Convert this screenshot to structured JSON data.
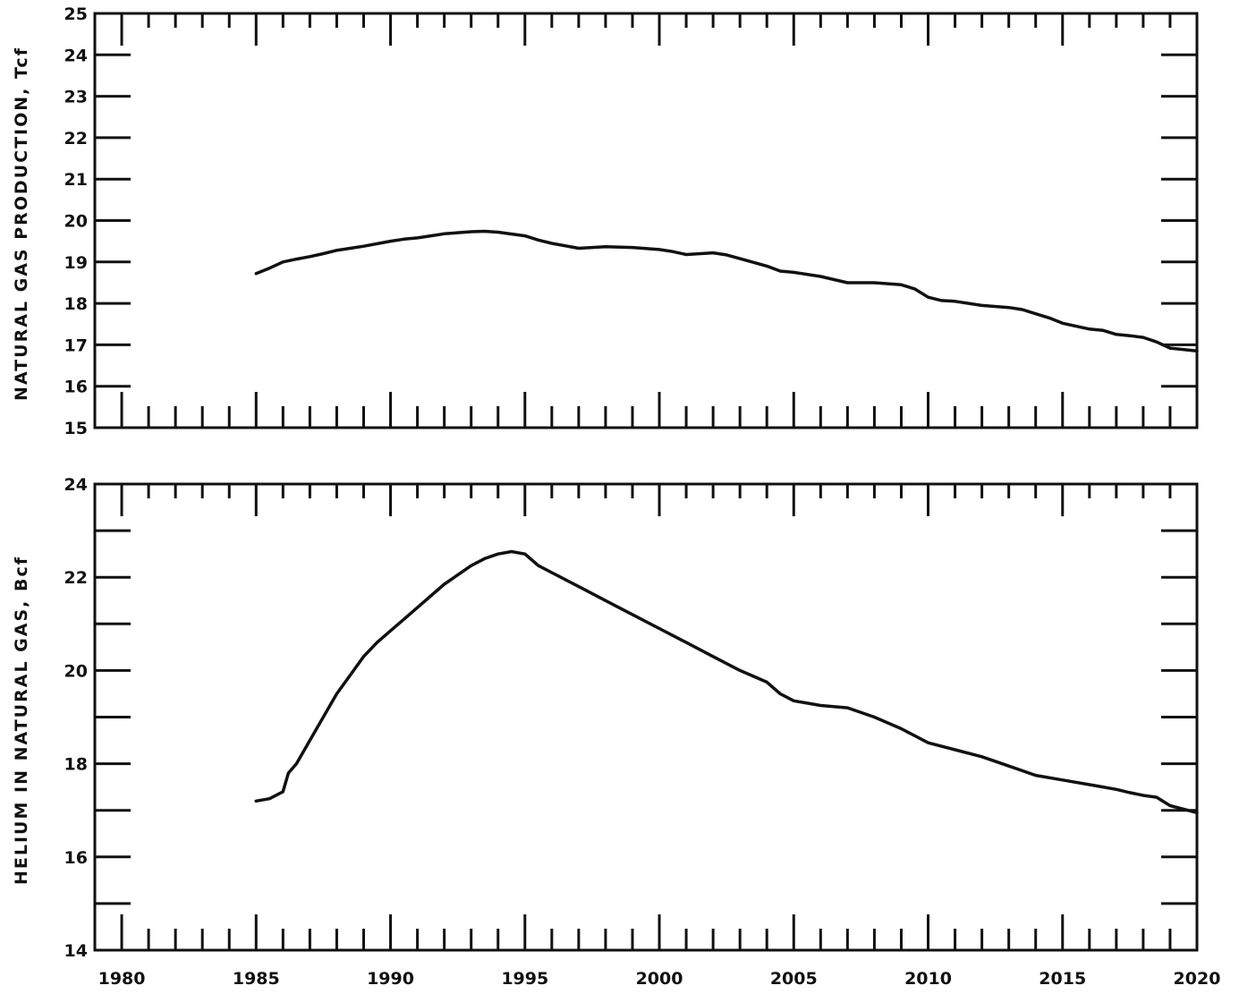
{
  "chart_data": [
    {
      "type": "line",
      "ylabel": "NATURAL GAS PRODUCTION, Tcf",
      "xlabel": "",
      "xlim": [
        1979,
        2020
      ],
      "ylim": [
        15,
        25
      ],
      "ytick_labels": [
        "15",
        "16",
        "17",
        "18",
        "19",
        "20",
        "21",
        "22",
        "23",
        "24",
        "25"
      ],
      "xtick_labels": [],
      "series": [
        {
          "x": [
            1985,
            1985.5,
            1986,
            1986.5,
            1987,
            1987.5,
            1988,
            1988.5,
            1989,
            1990,
            1990.5,
            1991,
            1991.5,
            1992,
            1993,
            1993.5,
            1994,
            1995,
            1995.5,
            1996,
            1997,
            1998,
            1999,
            2000,
            2000.5,
            2001,
            2002,
            2002.5,
            2003,
            2004,
            2004.5,
            2005,
            2006,
            2007,
            2008,
            2009,
            2009.5,
            2010,
            2010.5,
            2011,
            2012,
            2013,
            2013.5,
            2014,
            2014.5,
            2015,
            2016,
            2016.5,
            2017,
            2017.5,
            2018,
            2018.5,
            2019,
            2020
          ],
          "y": [
            18.72,
            18.85,
            19.0,
            19.07,
            19.13,
            19.2,
            19.28,
            19.33,
            19.38,
            19.5,
            19.55,
            19.58,
            19.63,
            19.68,
            19.73,
            19.74,
            19.72,
            19.63,
            19.53,
            19.45,
            19.33,
            19.37,
            19.35,
            19.3,
            19.25,
            19.18,
            19.22,
            19.17,
            19.08,
            18.9,
            18.78,
            18.75,
            18.65,
            18.5,
            18.5,
            18.45,
            18.35,
            18.15,
            18.07,
            18.05,
            17.95,
            17.9,
            17.85,
            17.75,
            17.65,
            17.52,
            17.38,
            17.35,
            17.25,
            17.22,
            17.18,
            17.07,
            16.92,
            16.85
          ]
        }
      ]
    },
    {
      "type": "line",
      "ylabel": "HELIUM IN NATURAL GAS, Bcf",
      "xlabel": "",
      "xlim": [
        1979,
        2020
      ],
      "ylim": [
        14,
        24
      ],
      "ytick_labels": [
        "14",
        "16",
        "18",
        "20",
        "22",
        "24"
      ],
      "xtick_labels": [
        "1980",
        "1985",
        "1990",
        "1995",
        "2000",
        "2005",
        "2010",
        "2015",
        "2020"
      ],
      "series": [
        {
          "x": [
            1985,
            1985.5,
            1986,
            1986.2,
            1986.5,
            1987,
            1987.5,
            1988,
            1988.5,
            1989,
            1989.5,
            1990,
            1990.5,
            1991,
            1991.5,
            1992,
            1992.5,
            1993,
            1993.5,
            1994,
            1994.5,
            1995,
            1995.3,
            1995.5,
            1996,
            1996.5,
            1997,
            1997.5,
            1998,
            1999,
            2000,
            2001,
            2002,
            2003,
            2004,
            2004.5,
            2005,
            2005.5,
            2006,
            2007,
            2008,
            2009,
            2010,
            2011,
            2012,
            2013,
            2013.5,
            2014,
            2015,
            2016,
            2016.5,
            2017,
            2017.5,
            2018,
            2018.5,
            2019,
            2020
          ],
          "y": [
            17.2,
            17.25,
            17.4,
            17.8,
            18.0,
            18.5,
            19.0,
            19.5,
            19.9,
            20.3,
            20.6,
            20.85,
            21.1,
            21.35,
            21.6,
            21.85,
            22.05,
            22.25,
            22.4,
            22.5,
            22.55,
            22.5,
            22.35,
            22.25,
            22.1,
            21.95,
            21.8,
            21.65,
            21.5,
            21.2,
            20.9,
            20.6,
            20.3,
            20.0,
            19.75,
            19.5,
            19.35,
            19.3,
            19.25,
            19.2,
            19.0,
            18.75,
            18.45,
            18.3,
            18.15,
            17.95,
            17.85,
            17.75,
            17.65,
            17.55,
            17.5,
            17.45,
            17.38,
            17.32,
            17.28,
            17.1,
            16.95
          ]
        }
      ]
    }
  ]
}
